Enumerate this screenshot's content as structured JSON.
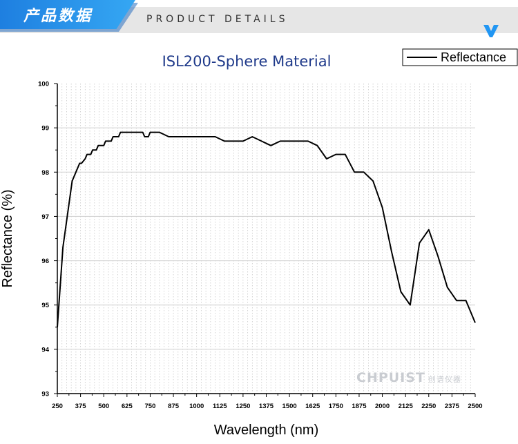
{
  "banner": {
    "title_cn": "产品数据",
    "title_en": "PRODUCT DETAILS",
    "icon": "chevron-down-icon",
    "accent_color": "#2196f3"
  },
  "watermark": {
    "brand": "CHPUIST",
    "cn": "创谱仪器"
  },
  "chart_data": {
    "type": "line",
    "title": "ISL200-Sphere Material",
    "xlabel": "Wavelength (nm)",
    "ylabel": "Reflectance (%)",
    "xlim": [
      250,
      2500
    ],
    "ylim": [
      93,
      100
    ],
    "xticks": [
      250,
      375,
      500,
      625,
      750,
      875,
      1000,
      1125,
      1250,
      1375,
      1500,
      1625,
      1750,
      1875,
      2000,
      2125,
      2250,
      2375,
      2500
    ],
    "xtick_labels": [
      "250",
      "375",
      "500",
      "625",
      "750",
      "875",
      "1000",
      "1125",
      "1250",
      "1375",
      "1500",
      "1625",
      "1750",
      "1875",
      "2000",
      "2125",
      "2250",
      "2375",
      "2500"
    ],
    "yticks": [
      93,
      94,
      95,
      96,
      97,
      98,
      99,
      100
    ],
    "ytick_labels": [
      "93",
      "94",
      "95",
      "96",
      "97",
      "98",
      "99",
      "100"
    ],
    "grid": true,
    "legend_position": "top-right",
    "series": [
      {
        "name": "Reflectance",
        "color": "#000000",
        "x": [
          250,
          280,
          330,
          370,
          380,
          400,
          410,
          430,
          440,
          460,
          470,
          500,
          510,
          540,
          550,
          580,
          590,
          620,
          710,
          720,
          740,
          750,
          800,
          850,
          900,
          1100,
          1150,
          1250,
          1300,
          1400,
          1450,
          1600,
          1650,
          1700,
          1750,
          1800,
          1850,
          1900,
          1950,
          2000,
          2050,
          2100,
          2150,
          2200,
          2250,
          2300,
          2350,
          2400,
          2450,
          2500
        ],
        "y": [
          94.5,
          96.3,
          97.8,
          98.2,
          98.2,
          98.3,
          98.4,
          98.4,
          98.5,
          98.5,
          98.6,
          98.6,
          98.7,
          98.7,
          98.8,
          98.8,
          98.9,
          98.9,
          98.9,
          98.8,
          98.8,
          98.9,
          98.9,
          98.8,
          98.8,
          98.8,
          98.7,
          98.7,
          98.8,
          98.6,
          98.7,
          98.7,
          98.6,
          98.3,
          98.4,
          98.4,
          98.0,
          98.0,
          97.8,
          97.2,
          96.2,
          95.3,
          95.0,
          96.4,
          96.7,
          96.1,
          95.4,
          95.1,
          95.1,
          94.6
        ]
      }
    ]
  }
}
